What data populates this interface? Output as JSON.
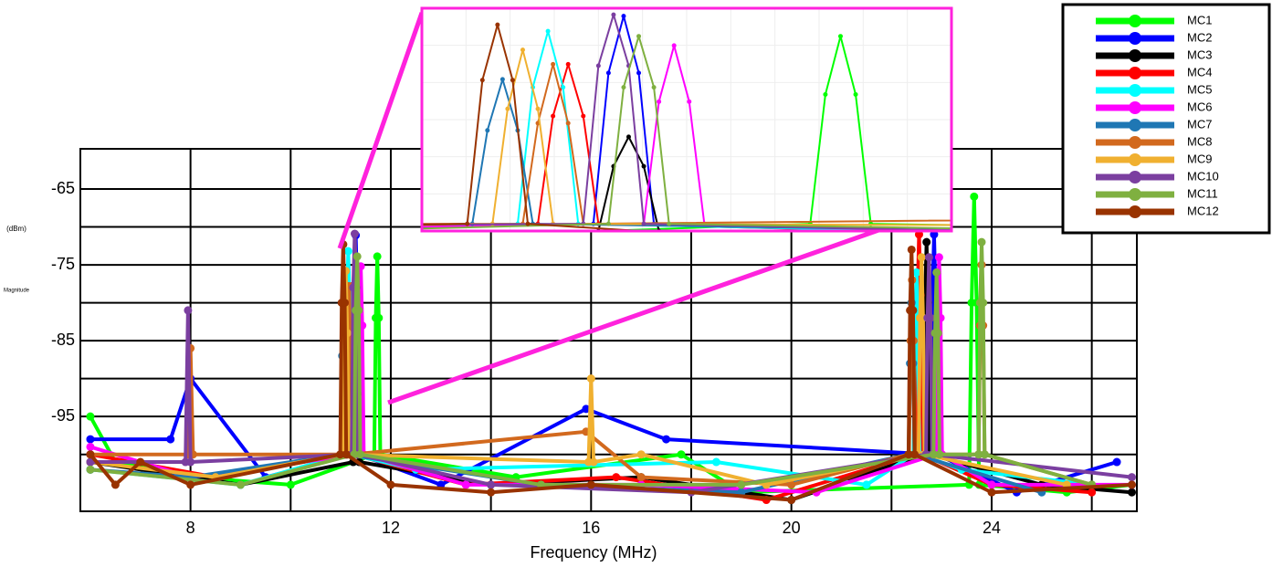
{
  "chart_data": {
    "type": "line",
    "xlabel": "Frequency (MHz)",
    "ylabel": "Magnitude",
    "ylabel_unit": "(dBm)",
    "xlim": [
      5.8,
      26.9
    ],
    "ylim": [
      -107.5,
      -59.7
    ],
    "xticks": [
      8,
      12,
      16,
      20,
      24
    ],
    "yticks": [
      -65,
      -75,
      -85,
      -95
    ],
    "x_minor_grid": [
      10,
      14,
      18,
      22,
      26
    ],
    "y_minor_grid": [
      -70,
      -80,
      -90,
      -100
    ],
    "grid": true,
    "legend": "upper right",
    "inset": {
      "xlim": [
        10.9,
        11.95
      ],
      "ylim": [
        -101,
        -70
      ]
    },
    "series": [
      {
        "name": "MC1",
        "color": "#00ff00",
        "x": [
          6.0,
          6.5,
          8.0,
          10.0,
          11.67,
          11.7,
          11.73,
          11.76,
          11.79,
          14.5,
          17.8,
          19.0,
          23.55,
          23.6,
          23.65,
          23.7,
          23.75,
          25.5,
          26.8
        ],
        "values": [
          -95,
          -101,
          -103,
          -104,
          -100,
          -82,
          -73.9,
          -82,
          -100,
          -103,
          -100,
          -105,
          -104,
          -80,
          -66,
          -80,
          -104,
          -105,
          -104
        ]
      },
      {
        "name": "MC2",
        "color": "#0000ff",
        "x": [
          6.0,
          7.6,
          8.0,
          9.5,
          11.24,
          11.27,
          11.3,
          11.33,
          11.36,
          13.0,
          15.9,
          17.5,
          22.79,
          22.82,
          22.85,
          22.88,
          22.91,
          24.5,
          26.5
        ],
        "values": [
          -98,
          -98,
          -90,
          -103,
          -100,
          -79,
          -71.1,
          -79,
          -100,
          -104,
          -94,
          -98,
          -100,
          -79,
          -71,
          -79,
          -100,
          -105,
          -101
        ]
      },
      {
        "name": "MC3",
        "color": "#000000",
        "x": [
          6.0,
          9.0,
          11.25,
          11.28,
          11.31,
          11.34,
          11.37,
          14.0,
          17.0,
          20.0,
          22.64,
          22.67,
          22.7,
          22.73,
          22.76,
          25.0,
          26.8
        ],
        "values": [
          -101,
          -104,
          -101,
          -92,
          -87.9,
          -92,
          -101,
          -104,
          -103,
          -106,
          -100,
          -80,
          -72,
          -80,
          -100,
          -104,
          -105
        ]
      },
      {
        "name": "MC4",
        "color": "#ff0000",
        "x": [
          6.0,
          8.5,
          11.13,
          11.16,
          11.19,
          11.22,
          11.25,
          13.5,
          16.5,
          19.5,
          22.49,
          22.52,
          22.55,
          22.58,
          22.61,
          24.0,
          26.0
        ],
        "values": [
          -100,
          -103,
          -100,
          -85,
          -77.8,
          -85,
          -100,
          -104,
          -103,
          -106,
          -100,
          -79,
          -71,
          -79,
          -100,
          -104,
          -105
        ]
      },
      {
        "name": "MC5",
        "color": "#00ffff",
        "x": [
          6.0,
          9.0,
          11.09,
          11.12,
          11.15,
          11.18,
          11.21,
          12.5,
          18.5,
          21.5,
          22.44,
          22.47,
          22.5,
          22.53,
          22.56,
          23.4,
          26.0
        ],
        "values": [
          -102,
          -104,
          -100,
          -81,
          -73.2,
          -81,
          -100,
          -102,
          -101,
          -104,
          -100,
          -84,
          -76,
          -84,
          -100,
          -102,
          -104
        ]
      },
      {
        "name": "MC6",
        "color": "#ff00ff",
        "x": [
          6.0,
          8.0,
          11.34,
          11.37,
          11.4,
          11.43,
          11.46,
          13.5,
          17.0,
          20.5,
          22.89,
          22.92,
          22.95,
          22.98,
          23.01,
          24.0,
          26.8
        ],
        "values": [
          -99,
          -103,
          -100,
          -83,
          -75.2,
          -83,
          -100,
          -104,
          -104,
          -105,
          -100,
          -82,
          -74,
          -82,
          -100,
          -104,
          -104
        ]
      },
      {
        "name": "MC7",
        "color": "#1f77b4",
        "x": [
          6.0,
          8.0,
          11.0,
          11.03,
          11.06,
          11.09,
          11.12,
          15.0,
          19.0,
          22.34,
          22.37,
          22.4,
          22.43,
          22.46,
          25.0
        ],
        "values": [
          -102,
          -103,
          -100,
          -87,
          -79.9,
          -87,
          -100,
          -104,
          -105,
          -100,
          -88,
          -80,
          -88,
          -100,
          -105
        ]
      },
      {
        "name": "MC8",
        "color": "#d2691e",
        "x": [
          6.0,
          7.95,
          8.0,
          8.05,
          11.1,
          11.13,
          11.16,
          11.19,
          11.22,
          15.9,
          17.0,
          20.0,
          22.35,
          22.38,
          22.41,
          22.44,
          22.47,
          23.74,
          23.77,
          23.8,
          23.83,
          23.86,
          26.0
        ],
        "values": [
          -100,
          -100,
          -86,
          -100,
          -100,
          -86,
          -77.8,
          -86,
          -100,
          -97,
          -103,
          -104,
          -100,
          -85,
          -77,
          -85,
          -100,
          -100,
          -83,
          -75,
          -83,
          -100,
          -104
        ]
      },
      {
        "name": "MC9",
        "color": "#f0b030",
        "x": [
          6.0,
          8.5,
          11.04,
          11.07,
          11.1,
          11.13,
          11.16,
          15.95,
          16.0,
          16.05,
          17.0,
          19.5,
          22.54,
          22.57,
          22.6,
          22.63,
          22.66,
          25.5
        ],
        "values": [
          -101,
          -103,
          -100,
          -84,
          -75.8,
          -84,
          -100,
          -101,
          -90,
          -101,
          -100,
          -104,
          -100,
          -82,
          -74,
          -82,
          -100,
          -104
        ]
      },
      {
        "name": "MC10",
        "color": "#7b3fa0",
        "x": [
          6.0,
          7.9,
          7.95,
          8.0,
          11.22,
          11.25,
          11.28,
          11.31,
          11.34,
          14.0,
          18.0,
          22.69,
          22.72,
          22.75,
          22.78,
          22.81,
          26.8
        ],
        "values": [
          -101,
          -101,
          -81,
          -101,
          -100,
          -78,
          -70.9,
          -78,
          -100,
          -104,
          -105,
          -100,
          -82,
          -74,
          -82,
          -100,
          -103
        ]
      },
      {
        "name": "MC11",
        "color": "#7fb040",
        "x": [
          6.0,
          9.0,
          11.27,
          11.3,
          11.33,
          11.36,
          11.39,
          15.0,
          19.0,
          22.84,
          22.87,
          22.9,
          22.93,
          22.96,
          23.74,
          23.77,
          23.8,
          23.83,
          23.86,
          26.0
        ],
        "values": [
          -102,
          -104,
          -100,
          -81,
          -73.9,
          -81,
          -100,
          -104,
          -104,
          -100,
          -84,
          -76,
          -84,
          -100,
          -100,
          -80,
          -72,
          -80,
          -100,
          -104
        ]
      },
      {
        "name": "MC12",
        "color": "#993300",
        "x": [
          6.0,
          6.5,
          7.0,
          8.0,
          10.99,
          11.02,
          11.05,
          11.08,
          11.11,
          12.0,
          14.0,
          16.0,
          20.0,
          22.34,
          22.37,
          22.4,
          22.43,
          22.46,
          24.0,
          26.8
        ],
        "values": [
          -100,
          -104,
          -101,
          -104,
          -100,
          -80,
          -72.3,
          -80,
          -100,
          -104,
          -105,
          -104,
          -106,
          -100,
          -81,
          -73,
          -81,
          -100,
          -105,
          -104
        ]
      }
    ]
  }
}
